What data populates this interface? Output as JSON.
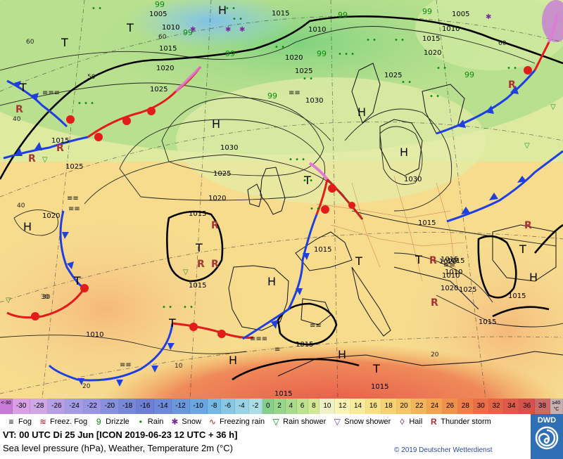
{
  "pressure_labels": [
    "1005",
    "1010",
    "1015",
    "1015",
    "1010",
    "1005",
    "1010",
    "1020",
    "1015",
    "1020",
    "1025",
    "1020",
    "1025",
    "1030",
    "1025",
    "1030",
    "1025",
    "1020",
    "1015",
    "1015",
    "1030",
    "1025",
    "1020",
    "1015",
    "1015",
    "1015",
    "1015",
    "1010",
    "1020",
    "1025",
    "1015",
    "1015",
    "1010",
    "1015",
    "1015",
    "1015",
    "1015",
    "1010",
    "1020"
  ],
  "pressure_centers": [
    "H",
    "H",
    "H",
    "H",
    "H",
    "H",
    "H",
    "H",
    "H",
    "T",
    "T",
    "T",
    "T",
    "T",
    "T",
    "T",
    "T",
    "T",
    "T",
    "T"
  ],
  "isotherm_labels": [
    "60",
    "60",
    "50",
    "40",
    "40",
    "30",
    "20",
    "30",
    "20",
    "10",
    "60"
  ],
  "scale": {
    "values": [
      "<-30",
      "-30",
      "-28",
      "-26",
      "-24",
      "-22",
      "-20",
      "-18",
      "-16",
      "-14",
      "-12",
      "-10",
      "-8",
      "-6",
      "-4",
      "-2",
      "0",
      "2",
      "4",
      "6",
      "8",
      "10",
      "12",
      "14",
      "16",
      "18",
      "20",
      "22",
      "24",
      "26",
      "28",
      "30",
      "32",
      "34",
      "36",
      "38",
      "≥40 °C"
    ],
    "colors": [
      "#c77ad6",
      "#d9a0e6",
      "#cfa6e6",
      "#b79fe6",
      "#a69ce6",
      "#9a96e3",
      "#8790dc",
      "#7888d8",
      "#6f7fd3",
      "#6c8ad8",
      "#6a97dc",
      "#6aa7e0",
      "#74b9e4",
      "#86c7e6",
      "#9ad3e6",
      "#acdde4",
      "#86cf8a",
      "#96d58a",
      "#a8dc8c",
      "#bde290",
      "#d2e896",
      "#eff2c8",
      "#fbf4b4",
      "#f9eb9c",
      "#f8e086",
      "#f6d272",
      "#f5c466",
      "#f3b55c",
      "#f2a452",
      "#f0924c",
      "#ee7f48",
      "#ea6e46",
      "#e46447",
      "#de5b4a",
      "#d7524d",
      "#cc6a6a",
      "#c9b0b0"
    ]
  },
  "legend": [
    "Fog",
    "Freez. Fog",
    "Drizzle",
    "Rain",
    "Snow",
    "Freezing rain",
    "Rain shower",
    "Snow shower",
    "Hail",
    "Thunder storm"
  ],
  "valid_time": "VT: 00 UTC Di  25 Jun [ICON 2019-06-23  12 UTC + 36 h]",
  "product": "Sea level pressure (hPa), Weather, Temperature 2m (°C)",
  "copyright": "© 2019 Deutscher Wetterdienst",
  "logo": "DWD"
}
